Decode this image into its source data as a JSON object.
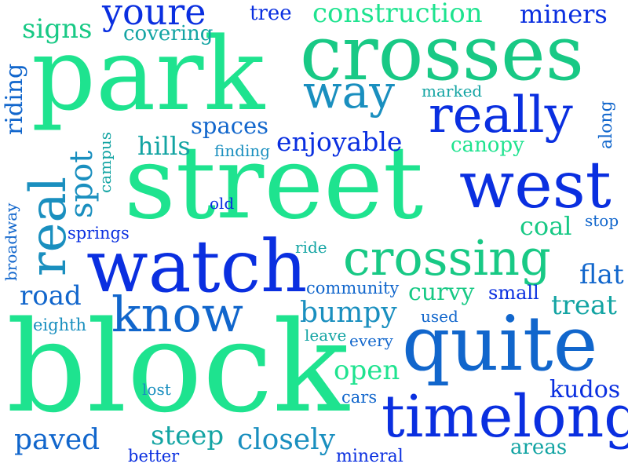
{
  "palette": {
    "mint": "#1ee38f",
    "green": "#18c985",
    "teal": "#13a4a3",
    "cyan": "#1a8fbf",
    "azure": "#1166cc",
    "blue": "#0a2fe0"
  },
  "words": {
    "block": "block",
    "street": "street",
    "park": "park",
    "crosses": "crosses",
    "watch": "watch",
    "quite": "quite",
    "west": "west",
    "timelong": "timelong",
    "crossing": "crossing",
    "really": "really",
    "real": "real",
    "know": "know",
    "way": "way",
    "youre": "youre",
    "construction": "construction",
    "miners": "miners",
    "tree": "tree",
    "signs": "signs",
    "covering": "covering",
    "spot": "spot",
    "riding": "riding",
    "enjoyable": "enjoyable",
    "spaces": "spaces",
    "hills": "hills",
    "finding": "finding",
    "campus": "campus",
    "marked": "marked",
    "canopy": "canopy",
    "along": "along",
    "coal": "coal",
    "stop": "stop",
    "old": "old",
    "springs": "springs",
    "broadway": "broadway",
    "ride": "ride",
    "flat": "flat",
    "road": "road",
    "community": "community",
    "curvy": "curvy",
    "small": "small",
    "treat": "treat",
    "bumpy": "bumpy",
    "used": "used",
    "eighth": "eighth",
    "leave": "leave",
    "every": "every",
    "open": "open",
    "lost": "lost",
    "kudos": "kudos",
    "cars": "cars",
    "steep": "steep",
    "paved": "paved",
    "closely": "closely",
    "better": "better",
    "mineral": "mineral",
    "areas": "areas"
  }
}
